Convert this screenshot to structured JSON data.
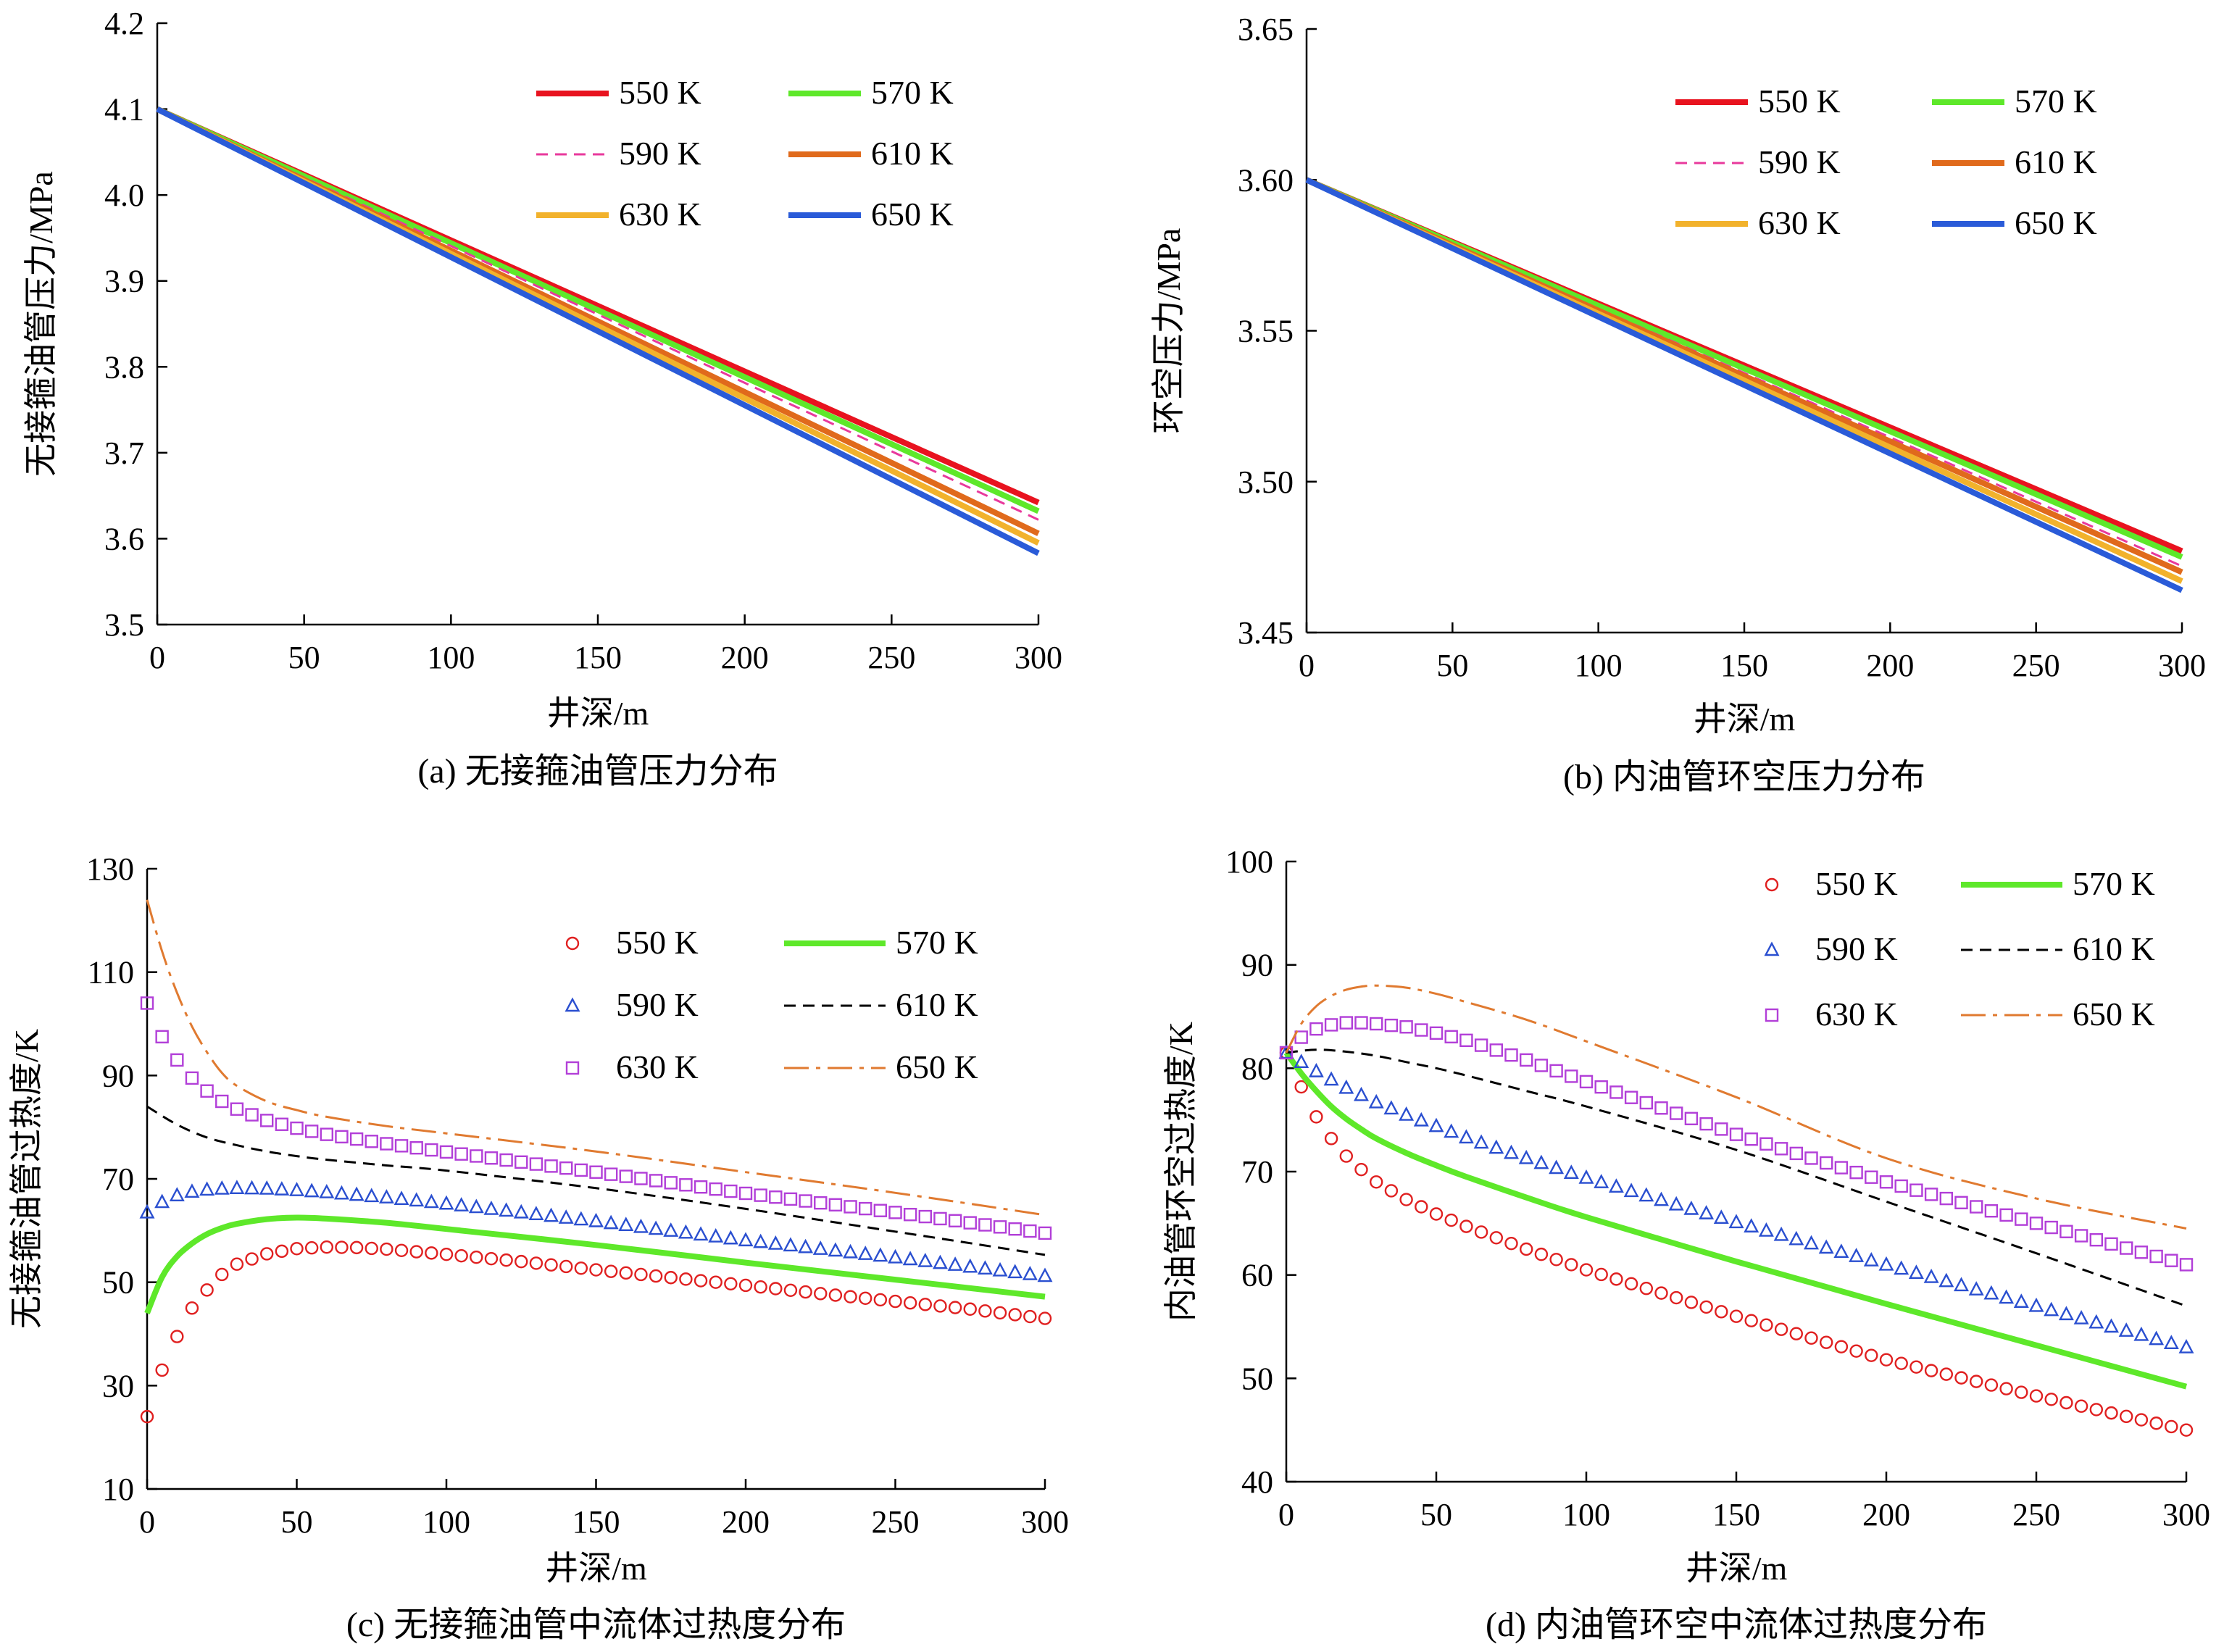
{
  "chart_data": [
    {
      "id": "a",
      "type": "line",
      "caption": "(a) 无接箍油管压力分布",
      "xlabel": "井深/m",
      "ylabel": "无接箍油管压力/MPa",
      "xlim": [
        0,
        300
      ],
      "ylim": [
        3.5,
        4.2
      ],
      "xticks": [
        0,
        50,
        100,
        150,
        200,
        250,
        300
      ],
      "yticks": [
        3.5,
        3.6,
        3.7,
        3.8,
        3.9,
        4.0,
        4.1,
        4.2
      ],
      "ytick_labels": [
        "3.5",
        "3.6",
        "3.7",
        "3.8",
        "3.9",
        "4.0",
        "4.1",
        "4.2"
      ],
      "grid": false,
      "legend_position": "top-right",
      "series": [
        {
          "name": "550 K",
          "color": "#e8131f",
          "style": "line",
          "x": [
            0,
            300
          ],
          "y": [
            4.1,
            3.642
          ]
        },
        {
          "name": "570 K",
          "color": "#5ee82a",
          "style": "line",
          "x": [
            0,
            300
          ],
          "y": [
            4.1,
            3.632
          ]
        },
        {
          "name": "590 K",
          "color": "#e8399c",
          "style": "dash",
          "x": [
            0,
            300
          ],
          "y": [
            4.1,
            3.622
          ]
        },
        {
          "name": "610 K",
          "color": "#e06a1c",
          "style": "line",
          "x": [
            0,
            300
          ],
          "y": [
            4.1,
            3.606
          ]
        },
        {
          "name": "630 K",
          "color": "#f2b22c",
          "style": "line",
          "x": [
            0,
            300
          ],
          "y": [
            4.1,
            3.595
          ]
        },
        {
          "name": "650 K",
          "color": "#2a5bd8",
          "style": "line",
          "x": [
            0,
            300
          ],
          "y": [
            4.1,
            3.583
          ]
        }
      ]
    },
    {
      "id": "b",
      "type": "line",
      "caption": "(b) 内油管环空压力分布",
      "xlabel": "井深/m",
      "ylabel": "环空压力/MPa",
      "xlim": [
        0,
        300
      ],
      "ylim": [
        3.45,
        3.65
      ],
      "xticks": [
        0,
        50,
        100,
        150,
        200,
        250,
        300
      ],
      "yticks": [
        3.45,
        3.5,
        3.55,
        3.6,
        3.65
      ],
      "ytick_labels": [
        "3.45",
        "3.50",
        "3.55",
        "3.60",
        "3.65"
      ],
      "grid": false,
      "legend_position": "top-right",
      "series": [
        {
          "name": "550 K",
          "color": "#e8131f",
          "style": "line",
          "x": [
            0,
            300
          ],
          "y": [
            3.6,
            3.477
          ]
        },
        {
          "name": "570 K",
          "color": "#5ee82a",
          "style": "line",
          "x": [
            0,
            300
          ],
          "y": [
            3.6,
            3.475
          ]
        },
        {
          "name": "590 K",
          "color": "#e8399c",
          "style": "dash",
          "x": [
            0,
            300
          ],
          "y": [
            3.6,
            3.472
          ]
        },
        {
          "name": "610 K",
          "color": "#e06a1c",
          "style": "line",
          "x": [
            0,
            300
          ],
          "y": [
            3.6,
            3.47
          ]
        },
        {
          "name": "630 K",
          "color": "#f2b22c",
          "style": "line",
          "x": [
            0,
            300
          ],
          "y": [
            3.6,
            3.467
          ]
        },
        {
          "name": "650 K",
          "color": "#2a5bd8",
          "style": "line",
          "x": [
            0,
            300
          ],
          "y": [
            3.6,
            3.464
          ]
        }
      ]
    },
    {
      "id": "c",
      "type": "scatter",
      "caption": "(c) 无接箍油管中流体过热度分布",
      "xlabel": "井深/m",
      "ylabel": "无接箍油管过热度/K",
      "xlim": [
        0,
        300
      ],
      "ylim": [
        10,
        130
      ],
      "xticks": [
        0,
        50,
        100,
        150,
        200,
        250,
        300
      ],
      "yticks": [
        10,
        30,
        50,
        70,
        90,
        110,
        130
      ],
      "ytick_labels": [
        "10",
        "30",
        "50",
        "70",
        "90",
        "110",
        "130"
      ],
      "grid": false,
      "legend_position": "top-right",
      "series": [
        {
          "name": "550 K",
          "color": "#e02020",
          "style": "circle",
          "x": [
            0,
            5,
            10,
            15,
            20,
            25,
            30,
            40,
            50,
            60,
            70,
            80,
            100,
            125,
            150,
            175,
            200,
            225,
            250,
            275,
            300
          ],
          "y": [
            24,
            33,
            39.5,
            45,
            48.5,
            51.5,
            53.5,
            55.5,
            56.5,
            56.8,
            56.7,
            56.4,
            55.4,
            54,
            52.4,
            50.9,
            49.4,
            47.8,
            46.3,
            44.8,
            43
          ]
        },
        {
          "name": "570 K",
          "color": "#5ee82a",
          "style": "line",
          "x": [
            0,
            5,
            10,
            15,
            20,
            25,
            30,
            40,
            50,
            60,
            80,
            100,
            150,
            200,
            250,
            300
          ],
          "y": [
            44,
            51,
            55,
            57.5,
            59.3,
            60.5,
            61.3,
            62.2,
            62.5,
            62.3,
            61.5,
            60.3,
            57.2,
            53.8,
            50.5,
            47.2
          ]
        },
        {
          "name": "590 K",
          "color": "#2a4fd0",
          "style": "triangle",
          "x": [
            0,
            5,
            10,
            15,
            20,
            25,
            30,
            40,
            50,
            60,
            80,
            100,
            150,
            200,
            250,
            300
          ],
          "y": [
            63.5,
            65.5,
            66.8,
            67.5,
            67.9,
            68.1,
            68.2,
            68.1,
            67.8,
            67.4,
            66.4,
            65.2,
            61.8,
            58.1,
            54.8,
            51.2
          ]
        },
        {
          "name": "610 K",
          "color": "#000000",
          "style": "dash",
          "x": [
            0,
            10,
            20,
            30,
            40,
            50,
            60,
            80,
            100,
            150,
            200,
            250,
            300
          ],
          "y": [
            84,
            80.5,
            78,
            76.5,
            75.3,
            74.4,
            73.7,
            72.6,
            71.6,
            68.2,
            64.2,
            59.8,
            55.3
          ]
        },
        {
          "name": "630 K",
          "color": "#b23fd8",
          "style": "square",
          "x": [
            0,
            5,
            10,
            15,
            20,
            25,
            30,
            40,
            50,
            60,
            80,
            100,
            150,
            200,
            250,
            300
          ],
          "y": [
            104,
            97.5,
            93,
            89.5,
            87,
            85,
            83.5,
            81.3,
            79.8,
            78.6,
            76.8,
            75.2,
            71.3,
            67.2,
            63.5,
            59.5
          ]
        },
        {
          "name": "650 K",
          "color": "#e07a30",
          "style": "dashdot",
          "x": [
            0,
            5,
            10,
            15,
            20,
            25,
            30,
            40,
            50,
            60,
            80,
            100,
            150,
            200,
            250,
            300
          ],
          "y": [
            124,
            114,
            106,
            99.5,
            94.5,
            90.5,
            88,
            85,
            83.3,
            82,
            80.2,
            78.8,
            75.3,
            71.3,
            67.3,
            63
          ]
        }
      ]
    },
    {
      "id": "d",
      "type": "scatter",
      "caption": "(d) 内油管环空中流体过热度分布",
      "xlabel": "井深/m",
      "ylabel": "内油管环空过热度/K",
      "xlim": [
        0,
        300
      ],
      "ylim": [
        40,
        100
      ],
      "xticks": [
        0,
        50,
        100,
        150,
        200,
        250,
        300
      ],
      "yticks": [
        40,
        50,
        60,
        70,
        80,
        90,
        100
      ],
      "ytick_labels": [
        "40",
        "50",
        "60",
        "70",
        "80",
        "90",
        "100"
      ],
      "grid": false,
      "legend_position": "top-right",
      "series": [
        {
          "name": "550 K",
          "color": "#e02020",
          "style": "circle",
          "x": [
            0,
            5,
            10,
            15,
            20,
            25,
            30,
            40,
            50,
            60,
            80,
            100,
            150,
            200,
            250,
            300
          ],
          "y": [
            81.5,
            78.2,
            75.3,
            73.2,
            71.5,
            70.2,
            69,
            67.3,
            65.9,
            64.7,
            62.5,
            60.5,
            56,
            51.8,
            48.3,
            45
          ]
        },
        {
          "name": "570 K",
          "color": "#5ee82a",
          "style": "line",
          "x": [
            0,
            5,
            10,
            15,
            20,
            25,
            30,
            40,
            50,
            60,
            80,
            100,
            150,
            200,
            250,
            300
          ],
          "y": [
            81.5,
            79.5,
            77.8,
            76.3,
            75.1,
            74.1,
            73.2,
            71.8,
            70.6,
            69.5,
            67.5,
            65.6,
            61.3,
            57.2,
            53.2,
            49.2
          ]
        },
        {
          "name": "590 K",
          "color": "#2a4fd0",
          "style": "triangle",
          "x": [
            0,
            5,
            10,
            15,
            20,
            25,
            30,
            40,
            50,
            60,
            80,
            100,
            150,
            200,
            250,
            300
          ],
          "y": [
            81.5,
            80.6,
            79.7,
            78.9,
            78.1,
            77.4,
            76.7,
            75.5,
            74.4,
            73.3,
            71.3,
            69.4,
            65.1,
            61,
            57,
            53
          ]
        },
        {
          "name": "610 K",
          "color": "#000000",
          "style": "dash",
          "x": [
            0,
            10,
            20,
            30,
            40,
            50,
            60,
            80,
            100,
            150,
            200,
            250,
            300
          ],
          "y": [
            81.5,
            81.8,
            81.6,
            81.2,
            80.6,
            80,
            79.3,
            77.8,
            76.3,
            72.1,
            67.1,
            62.1,
            57
          ]
        },
        {
          "name": "630 K",
          "color": "#b23fd8",
          "style": "square",
          "x": [
            0,
            5,
            10,
            15,
            20,
            25,
            30,
            40,
            50,
            60,
            80,
            100,
            150,
            200,
            250,
            300
          ],
          "y": [
            81.5,
            83,
            83.8,
            84.2,
            84.4,
            84.4,
            84.3,
            84,
            83.4,
            82.7,
            80.8,
            78.7,
            73.6,
            69,
            65,
            61
          ]
        },
        {
          "name": "650 K",
          "color": "#e07a30",
          "style": "dashdot",
          "x": [
            0,
            5,
            10,
            15,
            20,
            25,
            30,
            40,
            50,
            60,
            80,
            100,
            150,
            200,
            250,
            300
          ],
          "y": [
            81.5,
            84.3,
            86,
            87,
            87.6,
            87.9,
            88,
            87.8,
            87.2,
            86.4,
            84.7,
            82.6,
            77.2,
            71.3,
            67.4,
            64.5
          ]
        }
      ]
    }
  ]
}
